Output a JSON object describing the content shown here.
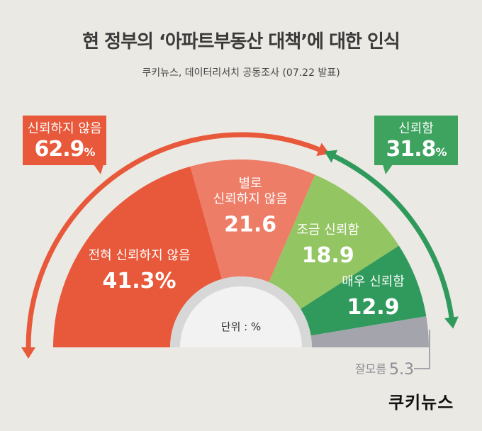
{
  "title": "현 정부의 ‘아파트부동산 대책’에 대한 인식",
  "subtitle": "쿠키뉴스, 데이터리서치 공동조사 (07.22 발표)",
  "unit_label": "단위 : %",
  "callouts": {
    "distrust": {
      "label": "신뢰하지 않음",
      "value": "62.9",
      "unit": "%"
    },
    "trust": {
      "label": "신뢰함",
      "value": "31.8",
      "unit": "%"
    }
  },
  "logo": "쿠키뉴스",
  "colors": {
    "background": "#ebe9e4",
    "not_at_all": "#e8583a",
    "not_really": "#ee7d67",
    "somewhat": "#94c563",
    "very": "#2f9a5b",
    "dont_know": "#a4a4ac",
    "distrust_arrow": "#e8583a",
    "trust_arrow": "#3ea35f"
  },
  "chart_data": {
    "type": "pie",
    "shape": "semicircle",
    "unit": "%",
    "categories": [
      "전혀 신뢰하지 않음",
      "별로 신뢰하지 않음",
      "조금 신뢰함",
      "매우 신뢰함",
      "잘모름"
    ],
    "values": [
      41.3,
      21.6,
      18.9,
      12.9,
      5.3
    ],
    "groups": [
      {
        "name": "신뢰하지 않음",
        "value": 62.9
      },
      {
        "name": "신뢰함",
        "value": 31.8
      }
    ]
  }
}
